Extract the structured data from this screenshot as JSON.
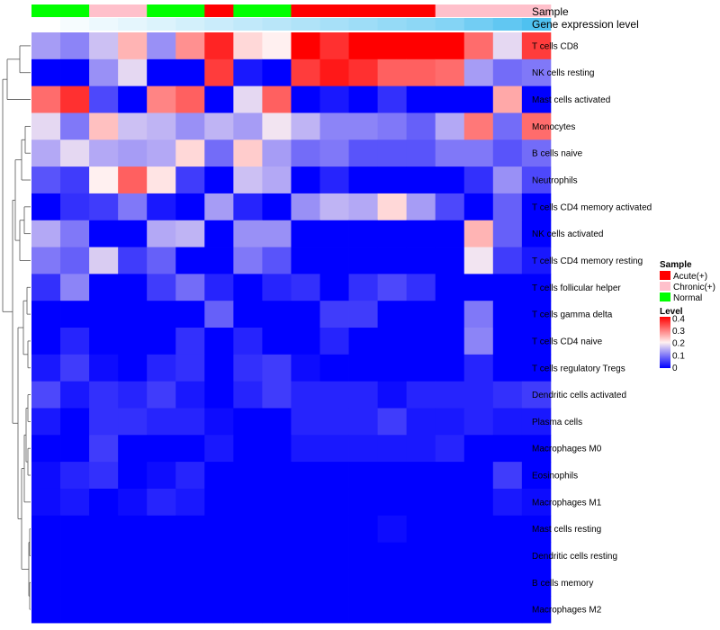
{
  "chart_data": {
    "type": "heatmap",
    "title": "",
    "annotation_labels": [
      "Sample",
      "Gene expression level"
    ],
    "rows": [
      "T cells CD8",
      "NK cells resting",
      "Mast cells activated",
      "Monocytes",
      "B cells naive",
      "Neutrophils",
      "T cells CD4 memory activated",
      "NK cells activated",
      "T cells CD4 memory resting",
      "T cells follicular helper",
      "T cells gamma delta",
      "T cells CD4 naive",
      "T cells regulatory  Tregs",
      "Dendritic cells activated",
      "Plasma cells",
      "Macrophages M0",
      "Eosinophils",
      "Macrophages M1",
      "Mast cells resting",
      "Dendritic cells resting",
      "B cells memory",
      "Macrophages M2"
    ],
    "n_columns": 18,
    "values": [
      [
        0.13,
        0.11,
        0.16,
        0.25,
        0.12,
        0.28,
        0.37,
        0.22,
        0.2,
        0.4,
        0.36,
        0.4,
        0.4,
        0.4,
        0.4,
        0.31,
        0.18,
        0.35
      ],
      [
        0.0,
        0.0,
        0.12,
        0.18,
        0.0,
        0.0,
        0.35,
        0.02,
        0.0,
        0.35,
        0.38,
        0.36,
        0.32,
        0.32,
        0.31,
        0.13,
        0.09,
        0.1
      ],
      [
        0.31,
        0.36,
        0.06,
        0.0,
        0.29,
        0.32,
        0.0,
        0.18,
        0.32,
        0.0,
        0.02,
        0.0,
        0.04,
        0.0,
        0.0,
        0.0,
        0.26,
        0.0
      ],
      [
        0.18,
        0.1,
        0.24,
        0.16,
        0.15,
        0.12,
        0.15,
        0.13,
        0.19,
        0.15,
        0.11,
        0.11,
        0.1,
        0.08,
        0.14,
        0.3,
        0.09,
        0.31
      ],
      [
        0.14,
        0.18,
        0.14,
        0.13,
        0.14,
        0.22,
        0.09,
        0.23,
        0.13,
        0.09,
        0.1,
        0.07,
        0.07,
        0.07,
        0.1,
        0.1,
        0.07,
        0.09
      ],
      [
        0.07,
        0.05,
        0.2,
        0.32,
        0.21,
        0.05,
        0.0,
        0.16,
        0.14,
        0.0,
        0.03,
        0.0,
        0.0,
        0.0,
        0.0,
        0.04,
        0.12,
        0.06
      ],
      [
        0.0,
        0.04,
        0.05,
        0.1,
        0.02,
        0.0,
        0.13,
        0.03,
        0.0,
        0.12,
        0.15,
        0.14,
        0.22,
        0.13,
        0.06,
        0.0,
        0.08,
        0.0
      ],
      [
        0.14,
        0.1,
        0.0,
        0.0,
        0.14,
        0.15,
        0.0,
        0.12,
        0.12,
        0.0,
        0.0,
        0.0,
        0.0,
        0.0,
        0.0,
        0.25,
        0.08,
        0.0
      ],
      [
        0.1,
        0.08,
        0.17,
        0.05,
        0.08,
        0.0,
        0.0,
        0.1,
        0.07,
        0.0,
        0.0,
        0.0,
        0.0,
        0.0,
        0.0,
        0.19,
        0.05,
        0.02
      ],
      [
        0.04,
        0.11,
        0.0,
        0.0,
        0.05,
        0.09,
        0.03,
        0.0,
        0.03,
        0.04,
        0.0,
        0.04,
        0.06,
        0.04,
        0.0,
        0.0,
        0.0,
        0.0
      ],
      [
        0.0,
        0.0,
        0.0,
        0.0,
        0.0,
        0.0,
        0.08,
        0.0,
        0.0,
        0.0,
        0.05,
        0.05,
        0.0,
        0.0,
        0.0,
        0.1,
        0.0,
        0.0
      ],
      [
        0.0,
        0.03,
        0.0,
        0.0,
        0.0,
        0.04,
        0.0,
        0.03,
        0.0,
        0.0,
        0.03,
        0.0,
        0.0,
        0.0,
        0.0,
        0.11,
        0.0,
        0.0
      ],
      [
        0.02,
        0.05,
        0.01,
        0.0,
        0.03,
        0.04,
        0.0,
        0.04,
        0.05,
        0.01,
        0.0,
        0.0,
        0.0,
        0.0,
        0.0,
        0.03,
        0.0,
        0.0
      ],
      [
        0.06,
        0.02,
        0.04,
        0.03,
        0.05,
        0.02,
        0.0,
        0.03,
        0.05,
        0.03,
        0.03,
        0.03,
        0.01,
        0.03,
        0.03,
        0.03,
        0.04,
        0.05
      ],
      [
        0.02,
        0.0,
        0.04,
        0.04,
        0.03,
        0.03,
        0.01,
        0.0,
        0.0,
        0.03,
        0.03,
        0.03,
        0.05,
        0.02,
        0.02,
        0.03,
        0.02,
        0.02
      ],
      [
        0.0,
        0.0,
        0.05,
        0.0,
        0.0,
        0.0,
        0.02,
        0.0,
        0.0,
        0.02,
        0.02,
        0.02,
        0.02,
        0.02,
        0.03,
        0.0,
        0.0,
        0.0
      ],
      [
        0.01,
        0.03,
        0.04,
        0.0,
        0.01,
        0.03,
        0.0,
        0.0,
        0.0,
        0.0,
        0.0,
        0.0,
        0.0,
        0.0,
        0.0,
        0.0,
        0.05,
        0.0
      ],
      [
        0.01,
        0.02,
        0.0,
        0.01,
        0.03,
        0.02,
        0.0,
        0.0,
        0.0,
        0.0,
        0.0,
        0.0,
        0.0,
        0.0,
        0.0,
        0.0,
        0.02,
        0.01
      ],
      [
        0.0,
        0.0,
        0.0,
        0.0,
        0.0,
        0.0,
        0.0,
        0.0,
        0.0,
        0.0,
        0.0,
        0.0,
        0.01,
        0.0,
        0.0,
        0.0,
        0.0,
        0.0
      ],
      [
        0.0,
        0.0,
        0.0,
        0.0,
        0.0,
        0.0,
        0.0,
        0.0,
        0.0,
        0.0,
        0.0,
        0.0,
        0.0,
        0.0,
        0.0,
        0.0,
        0.0,
        0.0
      ],
      [
        0.0,
        0.0,
        0.0,
        0.0,
        0.0,
        0.0,
        0.0,
        0.0,
        0.0,
        0.0,
        0.0,
        0.0,
        0.0,
        0.0,
        0.0,
        0.0,
        0.0,
        0.0
      ],
      [
        0.0,
        0.0,
        0.0,
        0.0,
        0.0,
        0.0,
        0.0,
        0.0,
        0.0,
        0.0,
        0.0,
        0.0,
        0.0,
        0.0,
        0.0,
        0.0,
        0.0,
        0.0
      ]
    ],
    "sample_groups": [
      "Normal",
      "Normal",
      "Chronic(+)",
      "Chronic(+)",
      "Normal",
      "Normal",
      "Acute(+)",
      "Normal",
      "Normal",
      "Acute(+)",
      "Acute(+)",
      "Acute(+)",
      "Acute(+)",
      "Acute(+)",
      "Chronic(+)",
      "Chronic(+)",
      "Chronic(+)",
      "Chronic(+)"
    ],
    "gene_expression_level": [
      0.0,
      0.05,
      0.1,
      0.15,
      0.2,
      0.25,
      0.3,
      0.35,
      0.4,
      0.45,
      0.5,
      0.55,
      0.6,
      0.65,
      0.7,
      0.8,
      0.9,
      1.0
    ],
    "gene_expression_colors": {
      "low": "#ffffff",
      "high": "#4fc1f0"
    },
    "color_scale": {
      "stops": [
        {
          "value": 0.0,
          "color": "#0000ff"
        },
        {
          "value": 0.2,
          "color": "#fff0f0"
        },
        {
          "value": 0.4,
          "color": "#ff0000"
        }
      ],
      "ticks": [
        "0.4",
        "0.3",
        "0.2",
        "0.1",
        "0"
      ]
    },
    "legends": {
      "sample": {
        "title": "Sample",
        "items": [
          {
            "label": "Acute(+)",
            "color": "#ff0000"
          },
          {
            "label": "Chronic(+)",
            "color": "#ffc0cb"
          },
          {
            "label": "Normal",
            "color": "#00ff00"
          }
        ]
      },
      "level": {
        "title": "Level"
      }
    },
    "row_dendrogram": true,
    "legend_position": "right"
  }
}
